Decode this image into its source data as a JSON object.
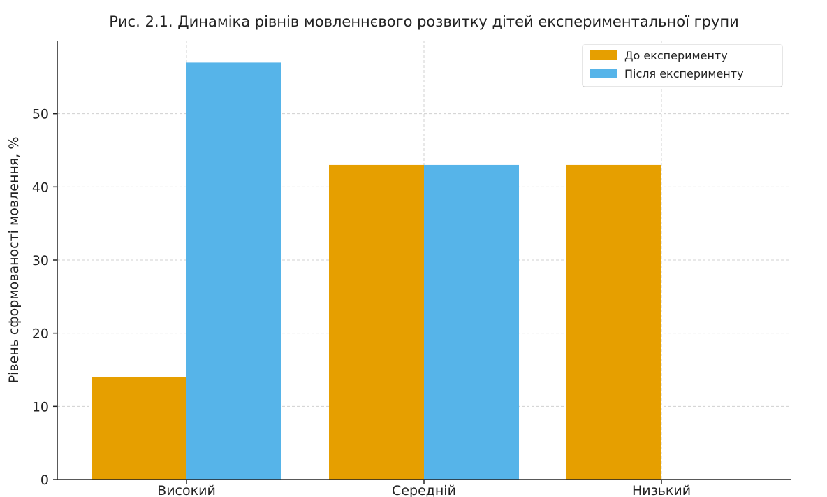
{
  "chart_data": {
    "type": "bar",
    "title": "Рис. 2.1. Динаміка рівнів мовленнєвого розвитку дітей експериментальної групи",
    "xlabel": "",
    "ylabel": "Рівень сформованості мовлення, %",
    "categories": [
      "Високий",
      "Середній",
      "Низький"
    ],
    "series": [
      {
        "name": "До експерименту",
        "values": [
          14,
          43,
          43
        ],
        "color": "#E69F00"
      },
      {
        "name": "Після експерименту",
        "values": [
          57,
          43,
          0
        ],
        "color": "#56B4E9"
      }
    ],
    "ylim": [
      0,
      60
    ],
    "yticks": [
      0,
      10,
      20,
      30,
      40,
      50
    ],
    "ytick_labels": [
      "0",
      "10",
      "20",
      "30",
      "40",
      "50"
    ],
    "grid": true,
    "legend_position": "top-right"
  }
}
